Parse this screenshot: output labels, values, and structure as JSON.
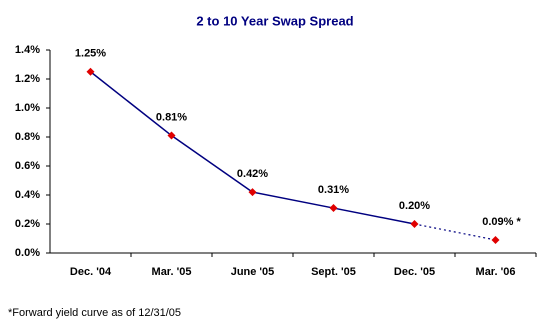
{
  "chart_data": {
    "type": "line",
    "title": "2 to 10 Year Swap Spread",
    "categories": [
      "Dec. '04",
      "Mar. '05",
      "June '05",
      "Sept. '05",
      "Dec. '05",
      "Mar. '06"
    ],
    "values": [
      1.25,
      0.81,
      0.42,
      0.31,
      0.2,
      0.09
    ],
    "value_labels": [
      "1.25%",
      "0.81%",
      "0.42%",
      "0.31%",
      "0.20%",
      "0.09% *"
    ],
    "color": "#000080",
    "marker_color": "#e00000",
    "dashed_last_segment": true,
    "ylim": [
      0,
      1.4
    ],
    "yticks": [
      {
        "value": 0,
        "label": "0.0%"
      },
      {
        "value": 0.2,
        "label": "0.2%"
      },
      {
        "value": 0.4,
        "label": "0.4%"
      },
      {
        "value": 0.6,
        "label": "0.6%"
      },
      {
        "value": 0.8,
        "label": "0.8%"
      },
      {
        "value": 1.0,
        "label": "1.0%"
      },
      {
        "value": 1.2,
        "label": "1.2%"
      },
      {
        "value": 1.4,
        "label": "1.4%"
      }
    ],
    "grid": false,
    "footnote": "*Forward yield curve as of 12/31/05"
  }
}
